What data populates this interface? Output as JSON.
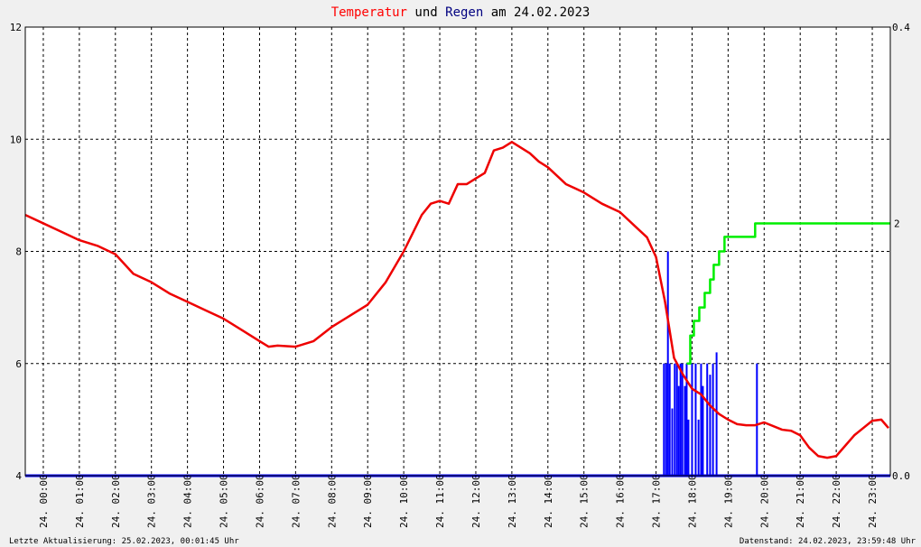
{
  "chart_data": {
    "type": "line",
    "title_parts": [
      {
        "text": "Temperatur",
        "color": "#ff0000"
      },
      {
        "text": " und ",
        "color": "#000000"
      },
      {
        "text": "Regen",
        "color": "#000080"
      },
      {
        "text": " am 24.02.2023",
        "color": "#000000"
      }
    ],
    "x_ticks": [
      "24. 00:00",
      "24. 01:00",
      "24. 02:00",
      "24. 03:00",
      "24. 04:00",
      "24. 05:00",
      "24. 06:00",
      "24. 07:00",
      "24. 08:00",
      "24. 09:00",
      "24. 10:00",
      "24. 11:00",
      "24. 12:00",
      "24. 13:00",
      "24. 14:00",
      "24. 15:00",
      "24. 16:00",
      "24. 17:00",
      "24. 18:00",
      "24. 19:00",
      "24. 20:00",
      "24. 21:00",
      "24. 22:00",
      "24. 23:00"
    ],
    "xlim_hours": [
      0,
      24
    ],
    "y_left": {
      "ylim": [
        4,
        12
      ],
      "ticks": [
        "4",
        "6",
        "8",
        "10",
        "12"
      ]
    },
    "y_right": {
      "ylim": [
        0,
        0.4
      ],
      "ticks": [
        "0.0",
        "0.4"
      ]
    },
    "grid": true,
    "series": [
      {
        "key": "temperature",
        "color": "#ee0000",
        "axis": "left",
        "x_hours": [
          0,
          0.5,
          1,
          1.5,
          2,
          2.5,
          3,
          3.5,
          4,
          4.5,
          5,
          5.5,
          6,
          6.5,
          6.75,
          7,
          7.5,
          8,
          8.5,
          9,
          9.5,
          10,
          10.5,
          11,
          11.25,
          11.5,
          11.75,
          12,
          12.25,
          12.5,
          12.75,
          13,
          13.25,
          13.5,
          13.75,
          14,
          14.25,
          14.5,
          15,
          15.5,
          16,
          16.5,
          17,
          17.25,
          17.5,
          17.75,
          18,
          18.25,
          18.5,
          18.75,
          19,
          19.25,
          19.5,
          19.75,
          20,
          20.25,
          20.5,
          21,
          21.25,
          21.5,
          21.75,
          22,
          22.25,
          22.5,
          23,
          23.25,
          23.5,
          23.75,
          23.95
        ],
        "values": [
          8.65,
          8.5,
          8.35,
          8.2,
          8.1,
          7.95,
          7.6,
          7.45,
          7.25,
          7.1,
          6.95,
          6.8,
          6.6,
          6.4,
          6.3,
          6.32,
          6.3,
          6.4,
          6.65,
          6.85,
          7.05,
          7.45,
          8.0,
          8.65,
          8.85,
          8.9,
          8.85,
          9.2,
          9.2,
          9.3,
          9.4,
          9.8,
          9.85,
          9.95,
          9.85,
          9.75,
          9.6,
          9.5,
          9.2,
          9.05,
          8.85,
          8.7,
          8.4,
          8.25,
          7.9,
          7.1,
          6.1,
          5.8,
          5.55,
          5.45,
          5.25,
          5.1,
          5.0,
          4.92,
          4.9,
          4.9,
          4.95,
          4.82,
          4.8,
          4.72,
          4.5,
          4.35,
          4.32,
          4.35,
          4.72,
          4.85,
          4.98,
          5.0,
          4.85
        ]
      },
      {
        "key": "rain_cumulative",
        "color": "#00ee00",
        "axis": "right",
        "step": true,
        "x_hours": [
          18.35,
          18.45,
          18.55,
          18.7,
          18.85,
          19.0,
          19.1,
          19.25,
          19.4,
          20.25,
          24.0
        ],
        "values": [
          0.1,
          0.125,
          0.138,
          0.15,
          0.163,
          0.175,
          0.188,
          0.2,
          0.213,
          0.225,
          0.225
        ],
        "end_label": "2"
      },
      {
        "key": "rain_rate",
        "color": "#0000ff",
        "axis": "right",
        "bars": true,
        "x_hours": [
          17.72,
          17.78,
          17.83,
          17.88,
          17.95,
          18.02,
          18.08,
          18.13,
          18.18,
          18.23,
          18.3,
          18.35,
          18.4,
          18.5,
          18.6,
          18.68,
          18.75,
          18.8,
          18.92,
          19.0,
          19.08,
          19.18,
          20.3
        ],
        "values": [
          0.1,
          0.1,
          0.2,
          0.1,
          0.06,
          0.1,
          0.1,
          0.08,
          0.1,
          0.1,
          0.08,
          0.1,
          0.05,
          0.1,
          0.1,
          0.05,
          0.1,
          0.08,
          0.1,
          0.09,
          0.1,
          0.11,
          0.1
        ]
      }
    ]
  },
  "footer": {
    "left": "Letzte Aktualisierung: 25.02.2023, 00:01:45 Uhr",
    "right": "Datenstand: 24.02.2023, 23:59:48 Uhr"
  }
}
